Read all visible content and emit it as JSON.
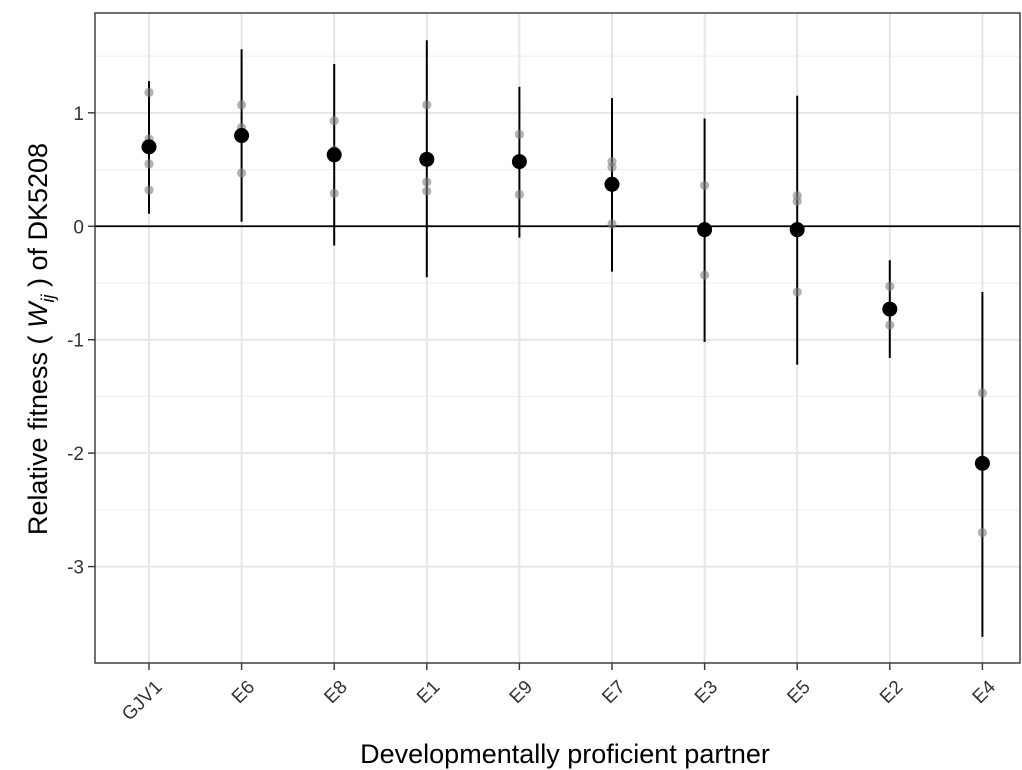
{
  "chart_data": {
    "type": "scatter",
    "xlabel": "Developmentally proficient partner",
    "ylabel_prefix": "Relative fitness ( ",
    "ylabel_symbol": "W",
    "ylabel_subscript": "ij",
    "ylabel_suffix": " ) of DK5208",
    "categories": [
      "GJV1",
      "E6",
      "E8",
      "E1",
      "E9",
      "E7",
      "E3",
      "E5",
      "E2",
      "E4"
    ],
    "ylim": [
      -3.85,
      1.88
    ],
    "yticks": [
      1,
      0,
      -1,
      -2,
      -3
    ],
    "ytick_labels": [
      "1",
      "0",
      "-1",
      "-2",
      "-3"
    ],
    "reference_line_y": 0,
    "grid": true,
    "means": [
      0.7,
      0.8,
      0.63,
      0.59,
      0.57,
      0.37,
      -0.03,
      -0.03,
      -0.73,
      -2.09
    ],
    "error_low": [
      0.11,
      0.04,
      -0.17,
      -0.45,
      -0.1,
      -0.4,
      -1.02,
      -1.22,
      -1.16,
      -3.62
    ],
    "error_high": [
      1.28,
      1.56,
      1.43,
      1.64,
      1.23,
      1.13,
      0.95,
      1.15,
      -0.3,
      -0.58
    ],
    "replicates": [
      [
        1.18,
        0.77,
        0.55,
        0.32
      ],
      [
        1.07,
        0.87,
        0.47
      ],
      [
        0.93,
        0.67,
        0.29
      ],
      [
        1.07,
        0.39,
        0.31
      ],
      [
        0.81,
        0.28
      ],
      [
        0.57,
        0.52,
        0.02
      ],
      [
        0.36,
        -0.43
      ],
      [
        0.27,
        0.22,
        -0.58
      ],
      [
        -0.53,
        -0.87
      ],
      [
        -1.47,
        -2.7
      ]
    ],
    "mean_color": "#000000",
    "replicate_color": "#7f7f7f"
  }
}
